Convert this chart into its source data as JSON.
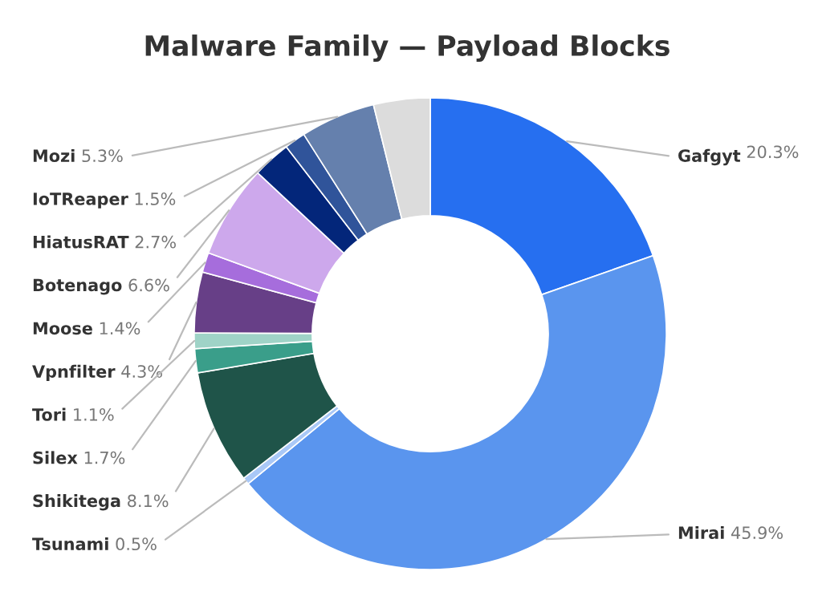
{
  "chart_data": {
    "type": "donut",
    "title": "Malware Family — Payload Blocks",
    "categories": [
      "Gafgyt",
      "Mirai",
      "Tsunami",
      "Shikitega",
      "Silex",
      "Tori",
      "Vpnfilter",
      "Moose",
      "Botenago",
      "HiatusRAT",
      "IoTReaper",
      "Mozi",
      null
    ],
    "values": [
      20.3,
      45.9,
      0.5,
      8.1,
      1.7,
      1.1,
      4.3,
      1.4,
      6.6,
      2.7,
      1.5,
      5.3,
      4
    ],
    "value_labels": [
      "20.3%",
      "45.9%",
      "0.5%",
      "8.1%",
      "1.7%",
      "1.1%",
      "4.3%",
      "1.4%",
      "6.6%",
      "2.7%",
      "1.5%",
      "5.3%",
      null
    ],
    "colors": [
      "#266ff0",
      "#5a95ee",
      "#a9c8f7",
      "#1f5449",
      "#3a9e8a",
      "#9fd3c7",
      "#673f87",
      "#a66ddc",
      "#cda8ec",
      "#03267a",
      "#30549a",
      "#6580ad",
      "#dcdcdc"
    ],
    "legend": false
  }
}
